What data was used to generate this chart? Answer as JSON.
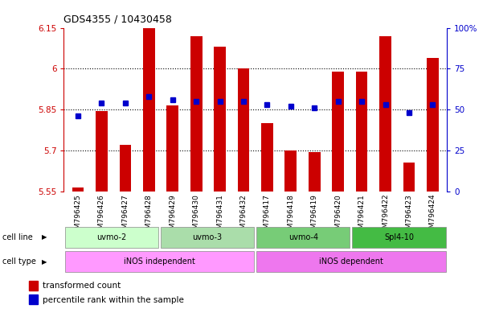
{
  "title": "GDS4355 / 10430458",
  "samples": [
    "GSM796425",
    "GSM796426",
    "GSM796427",
    "GSM796428",
    "GSM796429",
    "GSM796430",
    "GSM796431",
    "GSM796432",
    "GSM796417",
    "GSM796418",
    "GSM796419",
    "GSM796420",
    "GSM796421",
    "GSM796422",
    "GSM796423",
    "GSM796424"
  ],
  "red_values": [
    5.565,
    5.845,
    5.72,
    6.15,
    5.865,
    6.12,
    6.08,
    6.0,
    5.8,
    5.7,
    5.695,
    5.99,
    5.99,
    6.12,
    5.655,
    6.04
  ],
  "blue_values": [
    46,
    54,
    54,
    58,
    56,
    55,
    55,
    55,
    53,
    52,
    51,
    55,
    55,
    53,
    48,
    53
  ],
  "ymin": 5.55,
  "ymax": 6.15,
  "yticks": [
    5.55,
    5.7,
    5.85,
    6.0,
    6.15
  ],
  "ytick_labels": [
    "5.55",
    "5.7",
    "5.85",
    "6",
    "6.15"
  ],
  "y2min": 0,
  "y2max": 100,
  "y2ticks": [
    0,
    25,
    50,
    75,
    100
  ],
  "y2tick_labels": [
    "0",
    "25",
    "50",
    "75",
    "100%"
  ],
  "cell_line_groups": [
    {
      "label": "uvmo-2",
      "start": 0,
      "end": 4,
      "color": "#ccffcc"
    },
    {
      "label": "uvmo-3",
      "start": 4,
      "end": 8,
      "color": "#aaddaa"
    },
    {
      "label": "uvmo-4",
      "start": 8,
      "end": 12,
      "color": "#77cc77"
    },
    {
      "label": "Spl4-10",
      "start": 12,
      "end": 16,
      "color": "#44bb44"
    }
  ],
  "cell_type_groups": [
    {
      "label": "iNOS independent",
      "start": 0,
      "end": 8,
      "color": "#ff99ff"
    },
    {
      "label": "iNOS dependent",
      "start": 8,
      "end": 16,
      "color": "#ee77ee"
    }
  ],
  "bar_color": "#cc0000",
  "dot_color": "#0000cc",
  "axis_color_left": "#cc0000",
  "axis_color_right": "#0000cc",
  "bg_color": "#ffffff",
  "bar_width": 0.5,
  "grid_yticks": [
    5.7,
    5.85,
    6.0
  ]
}
